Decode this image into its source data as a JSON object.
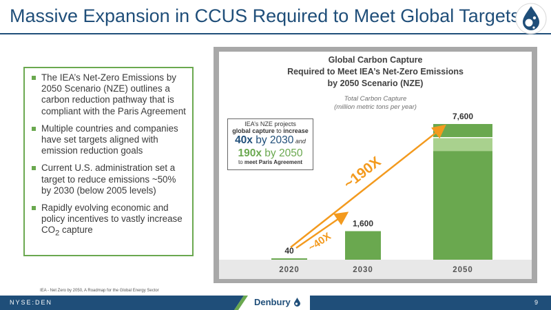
{
  "slide": {
    "title": "Massive Expansion in CCUS Required to Meet Global Targets",
    "source_note": "IEA - Net Zero by 2050, A Roadmap for the Global Energy Sector",
    "ticker": "NYSE:DEN",
    "brand": "Denbury",
    "page_number": "9"
  },
  "colors": {
    "navy": "#1f4e79",
    "green": "#6aa84f",
    "orange": "#f39a1e",
    "frame_gray": "#a8a8a8"
  },
  "bullets": [
    {
      "text": "The IEA’s Net-Zero Emissions by 2050 Scenario (NZE) outlines a carbon reduction pathway that is compliant with the Paris Agreement"
    },
    {
      "text": "Multiple countries and companies have set targets aligned with emission reduction goals"
    },
    {
      "text": "Current U.S. administration set a target to reduce emissions ~50% by 2030 (below 2005 levels)"
    },
    {
      "text_main": "Rapidly evolving economic and policy incentives to vastly increase CO",
      "sub": "2",
      "text_tail": " capture"
    }
  ],
  "callout": {
    "line1": "IEA’s NZE projects",
    "line2_bold1": "global capture",
    "line2_mid": " to ",
    "line2_bold2": "increase",
    "line3_bold": "40x",
    "line3_rest": " by 2030",
    "line3_and": " and",
    "line4_bold": "190x",
    "line4_rest": " by 2050",
    "line5_pre": "to ",
    "line5_bold": "meet Paris Agreement"
  },
  "chart_data": {
    "type": "bar",
    "title": "Global Carbon Capture Required to Meet IEA’s Net-Zero Emissions by 2050 Scenario (NZE)",
    "title_lines": [
      "Global Carbon Capture",
      "Required to Meet IEA’s Net-Zero Emissions",
      "by 2050 Scenario (NZE)"
    ],
    "subtitle_lines": [
      "Total Carbon Capture",
      "(million metric tons per year)"
    ],
    "categories": [
      "2020",
      "2030",
      "2050"
    ],
    "values": [
      40,
      1600,
      7600
    ],
    "value_labels": [
      "40",
      "1,600",
      "7,600"
    ],
    "annotations": [
      "~40X",
      "~190X"
    ],
    "ylim": [
      0,
      7600
    ],
    "grid": false,
    "legend": "none"
  }
}
